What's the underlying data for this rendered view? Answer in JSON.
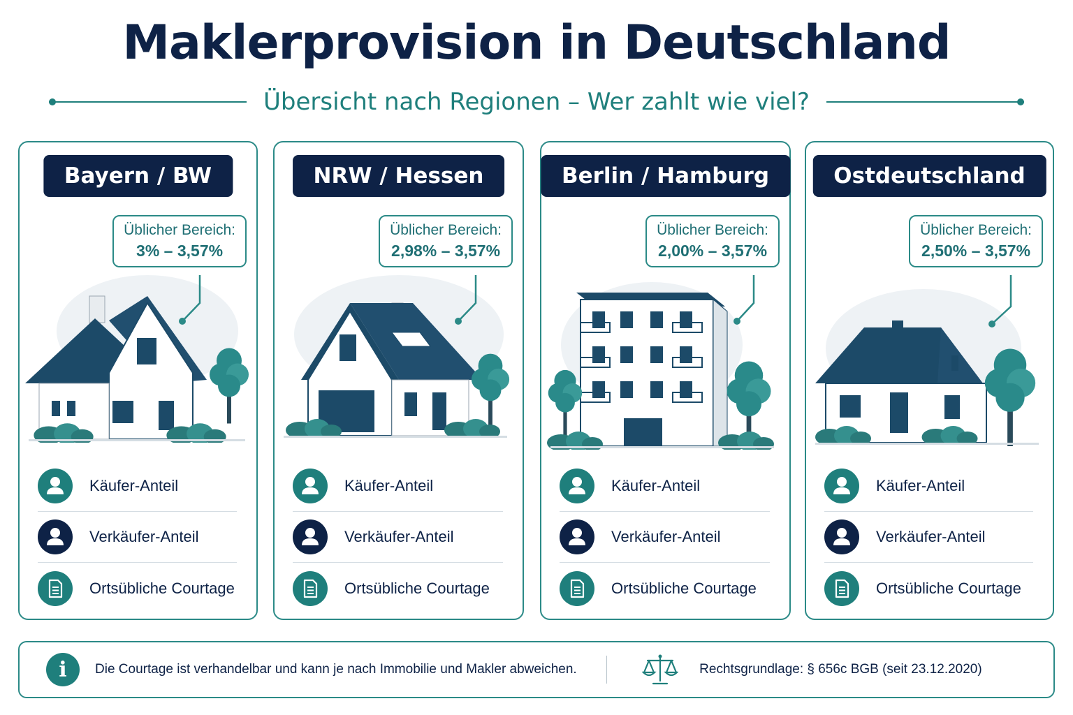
{
  "title": "Maklerprovision in Deutschland",
  "subtitle": "Übersicht nach Regionen – Wer zahlt wie viel?",
  "colors": {
    "navy": "#0e2246",
    "teal": "#1f7f7c",
    "border": "#2b8a87"
  },
  "bubble_label": "Üblicher Bereich:",
  "regions": [
    {
      "name": "Bayern / BW",
      "range": "3% – 3,57%",
      "illustration": "house-icon"
    },
    {
      "name": "NRW / Hessen",
      "range": "2,98% – 3,57%",
      "illustration": "house-icon"
    },
    {
      "name": "Berlin / Hamburg",
      "range": "2,00% – 3,57%",
      "illustration": "apartment-building-icon"
    },
    {
      "name": "Ostdeutschland",
      "range": "2,50% – 3,57%",
      "illustration": "house-icon"
    }
  ],
  "rows": [
    {
      "label": "Käufer-Anteil",
      "icon": "person-icon",
      "color": "teal"
    },
    {
      "label": "Verkäufer-Anteil",
      "icon": "person-icon",
      "color": "navy"
    },
    {
      "label": "Ortsübliche Courtage",
      "icon": "document-icon",
      "color": "teal"
    }
  ],
  "footer": {
    "info_icon": "i",
    "note": "Die Courtage ist verhandelbar und kann je nach Immobilie und Makler abweichen.",
    "law": "Rechtsgrundlage:  § 656c BGB (seit 23.12.2020)"
  }
}
